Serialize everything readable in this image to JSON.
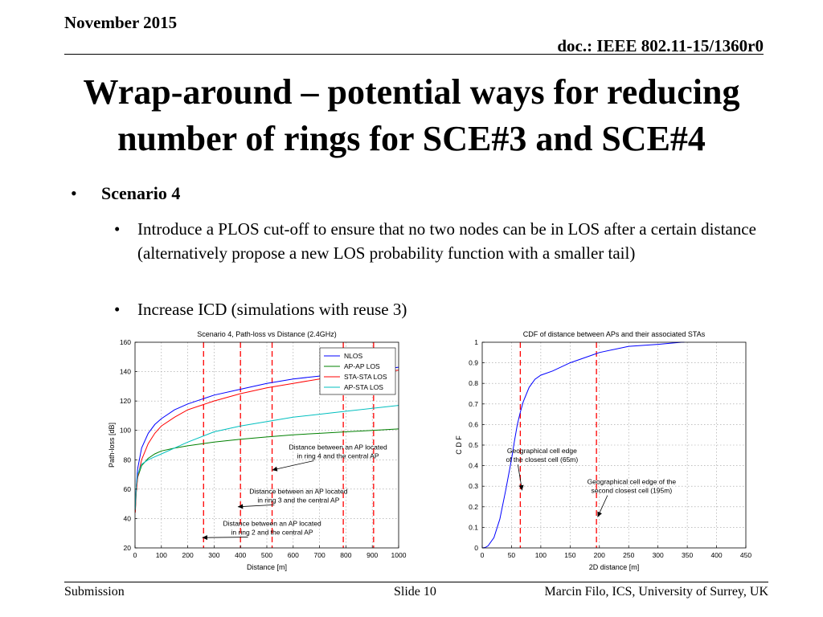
{
  "header": {
    "date": "November 2015",
    "doc": "doc.: IEEE 802.11-15/1360r0"
  },
  "title": {
    "line1": "Wrap-around – potential ways for reducing",
    "line2": "number of rings for SCE#3 and SCE#4"
  },
  "bullets": {
    "main": "Scenario 4",
    "sub": [
      "Introduce a PLOS cut-off to ensure that no two nodes can be in LOS after a certain distance (alternatively propose a new LOS probability function with a smaller tail)",
      "Increase ICD (simulations with reuse 3)"
    ]
  },
  "chart_data": [
    {
      "type": "line",
      "title": "Scenario 4, Path-loss vs Distance (2.4GHz)",
      "xlabel": "Distance [m]",
      "ylabel": "Path-loss [dB]",
      "xlim": [
        0,
        1000
      ],
      "ylim": [
        20,
        160
      ],
      "xticks": [
        0,
        100,
        200,
        300,
        400,
        500,
        600,
        700,
        800,
        900,
        1000
      ],
      "yticks": [
        20,
        40,
        60,
        80,
        100,
        120,
        140,
        160
      ],
      "grid": true,
      "legend_position": "top-right",
      "series": [
        {
          "name": "NLOS",
          "color": "#0000ff",
          "x": [
            1,
            5,
            10,
            25,
            50,
            75,
            100,
            150,
            200,
            300,
            400,
            500,
            600,
            700,
            800,
            900,
            1000
          ],
          "y": [
            48,
            62,
            74,
            88,
            98,
            104,
            108,
            114,
            118,
            124,
            128,
            132,
            135,
            137,
            139,
            141,
            143
          ]
        },
        {
          "name": "AP-AP LOS",
          "color": "#008000",
          "x": [
            1,
            5,
            10,
            25,
            50,
            75,
            100,
            150,
            200,
            300,
            400,
            500,
            600,
            700,
            800,
            900,
            1000
          ],
          "y": [
            45,
            60,
            68,
            76,
            81,
            84,
            86,
            88,
            89.5,
            92,
            94,
            95.5,
            97,
            98,
            99,
            100,
            101
          ]
        },
        {
          "name": "STA-STA LOS",
          "color": "#ff0000",
          "x": [
            1,
            5,
            10,
            25,
            50,
            75,
            100,
            150,
            200,
            300,
            400,
            500,
            600,
            700,
            800,
            900,
            1000
          ],
          "y": [
            44,
            58,
            68,
            80,
            91,
            98,
            103,
            109,
            114,
            120,
            125,
            129,
            132,
            135,
            137,
            139,
            141
          ]
        },
        {
          "name": "AP-STA LOS",
          "color": "#00bfbf",
          "x": [
            1,
            5,
            10,
            25,
            50,
            75,
            100,
            150,
            200,
            300,
            400,
            500,
            600,
            700,
            800,
            900,
            1000
          ],
          "y": [
            46,
            62,
            70,
            77,
            80,
            82,
            84,
            88,
            92,
            99,
            103,
            106,
            109,
            111,
            113,
            115,
            117
          ]
        }
      ],
      "vlines": [
        260,
        400,
        520,
        790,
        905
      ],
      "annotations": [
        {
          "text1": "Distance between an AP located",
          "text2": "in ring 4 and the central AP",
          "tx": 770,
          "ty": 87,
          "ax": 520,
          "ay": 73
        },
        {
          "text1": "Distance between an AP located",
          "text2": "in ring 3 and the central AP",
          "tx": 620,
          "ty": 57,
          "ax": 390,
          "ay": 48
        },
        {
          "text1": "Distance between an AP located",
          "text2": "in ring 2 and the central AP",
          "tx": 520,
          "ty": 35,
          "ax": 255,
          "ay": 27
        }
      ]
    },
    {
      "type": "line",
      "title": "CDF of distance between APs and their associated STAs",
      "xlabel": "2D distance [m]",
      "ylabel": "C D F",
      "xlim": [
        0,
        450
      ],
      "ylim": [
        0,
        1
      ],
      "xticks": [
        0,
        50,
        100,
        150,
        200,
        250,
        300,
        350,
        400,
        450
      ],
      "yticks": [
        0,
        0.1,
        0.2,
        0.3,
        0.4,
        0.5,
        0.6,
        0.7,
        0.8,
        0.9,
        1
      ],
      "grid": true,
      "series": [
        {
          "name": "",
          "color": "#0000ff",
          "x": [
            0,
            5,
            10,
            20,
            30,
            40,
            50,
            55,
            60,
            65,
            70,
            80,
            90,
            100,
            120,
            150,
            170,
            190,
            200,
            250,
            300,
            340,
            345
          ],
          "y": [
            0,
            0.002,
            0.01,
            0.05,
            0.14,
            0.28,
            0.43,
            0.52,
            0.6,
            0.66,
            0.71,
            0.78,
            0.82,
            0.84,
            0.86,
            0.9,
            0.92,
            0.94,
            0.95,
            0.98,
            0.99,
            1.0,
            1.0
          ]
        }
      ],
      "vlines": [
        65,
        195
      ],
      "annotations": [
        {
          "text1": "Geographical cell edge",
          "text2": "of the closest cell (65m)",
          "tx": 102,
          "ty": 0.46,
          "ax": 68,
          "ay": 0.28
        },
        {
          "text1": "Geographical cell edge of the",
          "text2": "second closest cell (195m)",
          "tx": 255,
          "ty": 0.31,
          "ax": 197,
          "ay": 0.15
        }
      ]
    }
  ],
  "footer": {
    "left": "Submission",
    "center": "Slide 10",
    "right": "Marcin Filo, ICS, University of Surrey, UK"
  }
}
